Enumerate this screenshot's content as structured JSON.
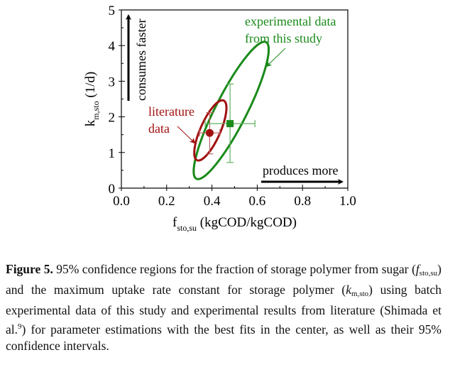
{
  "chart_data": {
    "type": "scatter",
    "title": "",
    "xlabel": "f",
    "xlabel_sub": "sto,su",
    "xlabel_unit": "(kgCOD/kgCOD)",
    "ylabel": "k",
    "ylabel_sub": "m,sto",
    "ylabel_unit": "(1/d)",
    "xlim": [
      0,
      1.0
    ],
    "ylim": [
      0,
      5
    ],
    "xticks": [
      "0.0",
      "0.2",
      "0.4",
      "0.6",
      "0.8",
      "1.0"
    ],
    "xtick_values": [
      0,
      0.2,
      0.4,
      0.6,
      0.8,
      1.0
    ],
    "yticks": [
      "0",
      "1",
      "2",
      "3",
      "4",
      "5"
    ],
    "ytick_values": [
      0,
      1,
      2,
      3,
      4,
      5
    ],
    "grid": false,
    "series": [
      {
        "name": "literature data",
        "color": "#a01010",
        "marker": "circle",
        "point": {
          "x": 0.39,
          "y": 1.55
        },
        "x_err": [
          0.345,
          0.435
        ],
        "y_err": [
          0.96,
          2.12
        ],
        "ellipse": {
          "cx": 0.395,
          "cy": 1.6,
          "x_min": 0.335,
          "x_max": 0.445,
          "y_min": 0.95,
          "y_max": 2.28
        }
      },
      {
        "name": "experimental data from this study",
        "color": "#1a8a1a",
        "marker": "square",
        "point": {
          "x": 0.48,
          "y": 1.81
        },
        "x_err": [
          0.37,
          0.59
        ],
        "y_err": [
          0.72,
          2.92
        ],
        "ellipse": {
          "cx": 0.485,
          "cy": 2.2,
          "x_min": 0.34,
          "x_max": 0.63,
          "y_min": 0.62,
          "y_max": 3.68
        }
      }
    ],
    "annotations": [
      {
        "text_lines": [
          "experimental data",
          "from this study"
        ],
        "color": "#1a8a1a",
        "target": "green-ellipse"
      },
      {
        "text_lines": [
          "literature",
          "data"
        ],
        "color": "#a01010",
        "target": "red-ellipse"
      },
      {
        "text": "consumes faster",
        "direction": "up",
        "color": "#000000"
      },
      {
        "text": "produces more",
        "direction": "right",
        "color": "#000000"
      }
    ]
  },
  "caption": {
    "label": "Figure 5.",
    "text_1": " 95% confidence regions for the fraction of storage polymer from sugar (",
    "f_sym": "f",
    "f_sub": "sto,su",
    "text_2": ") and the maximum uptake rate constant for storage polymer (",
    "k_sym": "k",
    "k_sub": "m,sto",
    "text_3": ") using batch experimental data of this study and experimental results from literature (Shimada et al.",
    "ref": "9",
    "text_4": ") for parameter estimations with the best fits in the center, as well as their 95% confidence intervals."
  }
}
